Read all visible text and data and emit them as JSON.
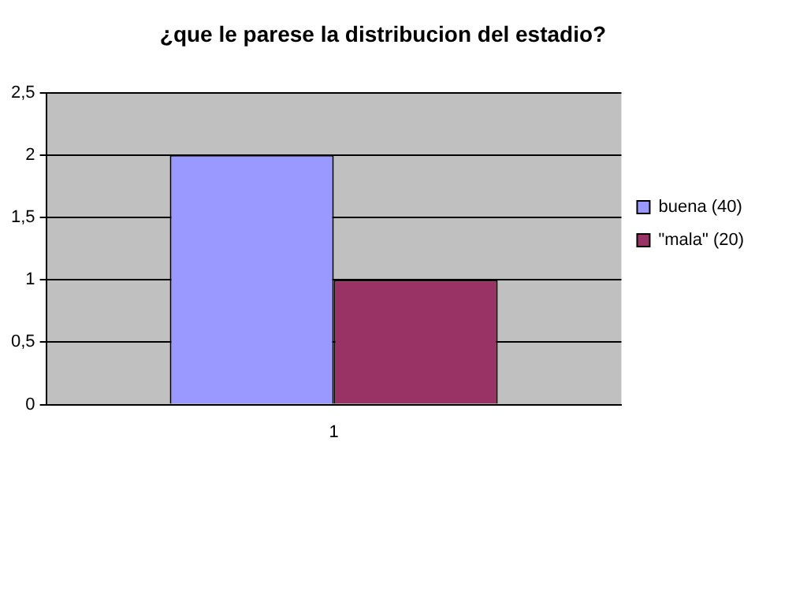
{
  "chart_data": {
    "type": "bar",
    "title": "¿que le parese la distribucion del estadio?",
    "categories": [
      "1"
    ],
    "series": [
      {
        "name": "buena (40)",
        "color": "#9999ff",
        "values": [
          2
        ]
      },
      {
        "name": "\"mala\" (20)",
        "color": "#993366",
        "values": [
          1
        ]
      }
    ],
    "ylim": [
      0,
      2.5
    ],
    "yticks": [
      0,
      {
        "value": 0.5,
        "label": "0,5"
      },
      1,
      {
        "value": 1.5,
        "label": "1,5"
      },
      2,
      {
        "value": 2.5,
        "label": "2,5"
      }
    ],
    "grid": "y",
    "legend": "right"
  }
}
